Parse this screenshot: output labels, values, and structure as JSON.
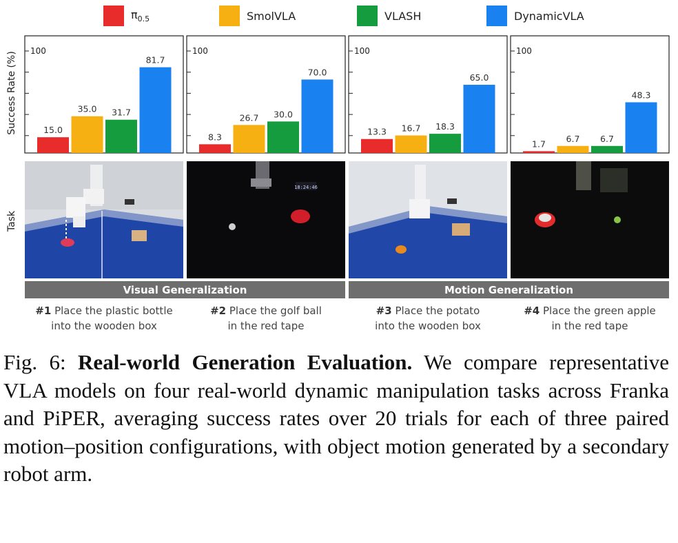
{
  "legend": [
    {
      "label": "π",
      "sub": "0.5",
      "color": "#e82c2c"
    },
    {
      "label": "SmolVLA",
      "sub": "",
      "color": "#f6b012"
    },
    {
      "label": "VLASH",
      "sub": "",
      "color": "#149c3f"
    },
    {
      "label": "DynamicVLA",
      "sub": "",
      "color": "#1a82f0"
    }
  ],
  "ylabel": "Success Rate (%)",
  "task_label": "Task",
  "chart_data": [
    {
      "type": "bar",
      "categories": [
        "π0.5",
        "SmolVLA",
        "VLASH",
        "DynamicVLA"
      ],
      "values": [
        15.0,
        35.0,
        31.7,
        81.7
      ],
      "labels": [
        "15.0",
        "35.0",
        "31.7",
        "81.7"
      ],
      "ylim": [
        0,
        100
      ],
      "tick_label": "100"
    },
    {
      "type": "bar",
      "categories": [
        "π0.5",
        "SmolVLA",
        "VLASH",
        "DynamicVLA"
      ],
      "values": [
        8.3,
        26.7,
        30.0,
        70.0
      ],
      "labels": [
        "8.3",
        "26.7",
        "30.0",
        "70.0"
      ],
      "ylim": [
        0,
        100
      ],
      "tick_label": "100"
    },
    {
      "type": "bar",
      "categories": [
        "π0.5",
        "SmolVLA",
        "VLASH",
        "DynamicVLA"
      ],
      "values": [
        13.3,
        16.7,
        18.3,
        65.0
      ],
      "labels": [
        "13.3",
        "16.7",
        "18.3",
        "65.0"
      ],
      "ylim": [
        0,
        100
      ],
      "tick_label": "100"
    },
    {
      "type": "bar",
      "categories": [
        "π0.5",
        "SmolVLA",
        "VLASH",
        "DynamicVLA"
      ],
      "values": [
        1.7,
        6.7,
        6.7,
        48.3
      ],
      "labels": [
        "1.7",
        "6.7",
        "6.7",
        "48.3"
      ],
      "ylim": [
        0,
        100
      ],
      "tick_label": "100"
    }
  ],
  "photos": [
    {
      "scene": "blue-table-robot-bottle",
      "overlay": ""
    },
    {
      "scene": "dark-golf-ball",
      "overlay": "18:24:46"
    },
    {
      "scene": "blue-table-robot-potato",
      "overlay": ""
    },
    {
      "scene": "dark-green-apple",
      "overlay": ""
    }
  ],
  "groups": [
    {
      "label": "Visual Generalization"
    },
    {
      "label": "Motion Generalization"
    }
  ],
  "tasks": [
    {
      "num": "#1",
      "line1": "Place the plastic bottle",
      "line2": "into the wooden box"
    },
    {
      "num": "#2",
      "line1": "Place the golf ball",
      "line2": "in the red tape"
    },
    {
      "num": "#3",
      "line1": "Place the potato",
      "line2": "into the wooden box"
    },
    {
      "num": "#4",
      "line1": "Place the green apple",
      "line2": "in the red tape"
    }
  ],
  "caption": {
    "prefix": "Fig. 6: ",
    "title": "Real-world Generation Evaluation.",
    "body": " We compare representative VLA models on four real-world dynamic manipulation tasks across Franka and PiPER, averaging success rates over 20 trials for each of three paired motion–position configurations, with object motion generated by a secondary robot arm."
  }
}
